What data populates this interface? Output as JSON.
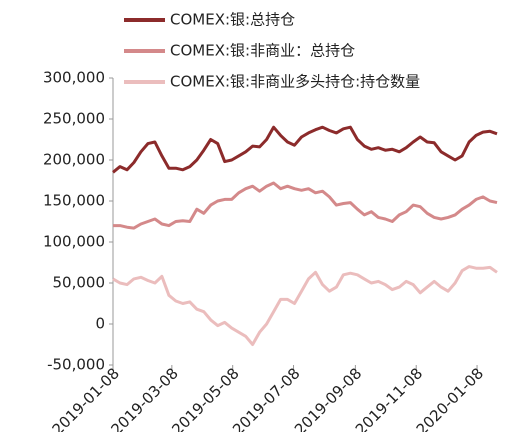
{
  "chart_data": {
    "type": "line",
    "x": [
      "2019-01-08",
      "2019-01-15",
      "2019-01-22",
      "2019-01-29",
      "2019-02-05",
      "2019-02-12",
      "2019-02-19",
      "2019-02-26",
      "2019-03-05",
      "2019-03-12",
      "2019-03-19",
      "2019-03-26",
      "2019-04-02",
      "2019-04-09",
      "2019-04-16",
      "2019-04-23",
      "2019-04-30",
      "2019-05-07",
      "2019-05-14",
      "2019-05-21",
      "2019-05-28",
      "2019-06-04",
      "2019-06-11",
      "2019-06-18",
      "2019-06-25",
      "2019-07-02",
      "2019-07-09",
      "2019-07-16",
      "2019-07-23",
      "2019-07-30",
      "2019-08-06",
      "2019-08-13",
      "2019-08-20",
      "2019-08-27",
      "2019-09-03",
      "2019-09-10",
      "2019-09-17",
      "2019-09-24",
      "2019-10-01",
      "2019-10-08",
      "2019-10-15",
      "2019-10-22",
      "2019-10-29",
      "2019-11-05",
      "2019-11-12",
      "2019-11-19",
      "2019-11-26",
      "2019-12-03",
      "2019-12-10",
      "2019-12-17",
      "2019-12-24",
      "2019-12-31",
      "2020-01-07",
      "2020-01-14",
      "2020-01-21",
      "2020-01-28"
    ],
    "series": [
      {
        "name": "COMEX:银:总持仓",
        "color": "#8c2b2b",
        "values": [
          185000,
          192000,
          188000,
          197000,
          210000,
          220000,
          222000,
          205000,
          190000,
          190000,
          188000,
          192000,
          200000,
          212000,
          225000,
          220000,
          198000,
          200000,
          205000,
          210000,
          217000,
          216000,
          225000,
          240000,
          230000,
          222000,
          218000,
          228000,
          233000,
          237000,
          240000,
          236000,
          233000,
          238000,
          240000,
          225000,
          217000,
          213000,
          215000,
          212000,
          213000,
          210000,
          215000,
          222000,
          228000,
          222000,
          221000,
          210000,
          205000,
          200000,
          205000,
          222000,
          230000,
          234000,
          235000,
          232000
        ]
      },
      {
        "name": "COMEX:银:非商业：总持仓",
        "color": "#d4898a",
        "values": [
          120000,
          120000,
          118000,
          117000,
          122000,
          125000,
          128000,
          122000,
          120000,
          125000,
          126000,
          125000,
          140000,
          135000,
          145000,
          150000,
          152000,
          152000,
          160000,
          165000,
          168000,
          162000,
          168000,
          172000,
          165000,
          168000,
          165000,
          163000,
          165000,
          160000,
          162000,
          155000,
          145000,
          147000,
          148000,
          140000,
          133000,
          137000,
          130000,
          128000,
          125000,
          133000,
          137000,
          145000,
          143000,
          135000,
          130000,
          128000,
          130000,
          133000,
          140000,
          145000,
          152000,
          155000,
          150000,
          148000
        ]
      },
      {
        "name": "COMEX:银:非商业多头持仓:持仓数量",
        "color": "#ebbdbd",
        "values": [
          55000,
          50000,
          48000,
          55000,
          57000,
          53000,
          50000,
          58000,
          35000,
          28000,
          25000,
          27000,
          18000,
          15000,
          5000,
          -2000,
          2000,
          -5000,
          -10000,
          -15000,
          -25000,
          -10000,
          0,
          15000,
          30000,
          30000,
          25000,
          40000,
          55000,
          63000,
          48000,
          40000,
          45000,
          60000,
          62000,
          60000,
          55000,
          50000,
          52000,
          48000,
          42000,
          45000,
          52000,
          48000,
          38000,
          45000,
          52000,
          45000,
          40000,
          50000,
          65000,
          70000,
          68000,
          68000,
          69000,
          63000
        ]
      }
    ],
    "xlim": [
      "2019-01-08",
      "2020-01-28"
    ],
    "xticks": [
      "2019-01-08",
      "2019-03-08",
      "2019-05-08",
      "2019-07-08",
      "2019-09-08",
      "2019-11-08",
      "2020-01-08"
    ],
    "ylim": [
      -50000,
      300000
    ],
    "yticks": [
      {
        "value": -50000,
        "label": "-50,000"
      },
      0,
      {
        "value": 50000,
        "label": "50,000"
      },
      {
        "value": 100000,
        "label": "100,000"
      },
      {
        "value": 150000,
        "label": "150,000"
      },
      {
        "value": 200000,
        "label": "200,000"
      },
      {
        "value": 250000,
        "label": "250,000"
      },
      {
        "value": 300000,
        "label": "300,000"
      }
    ],
    "grid": false
  }
}
